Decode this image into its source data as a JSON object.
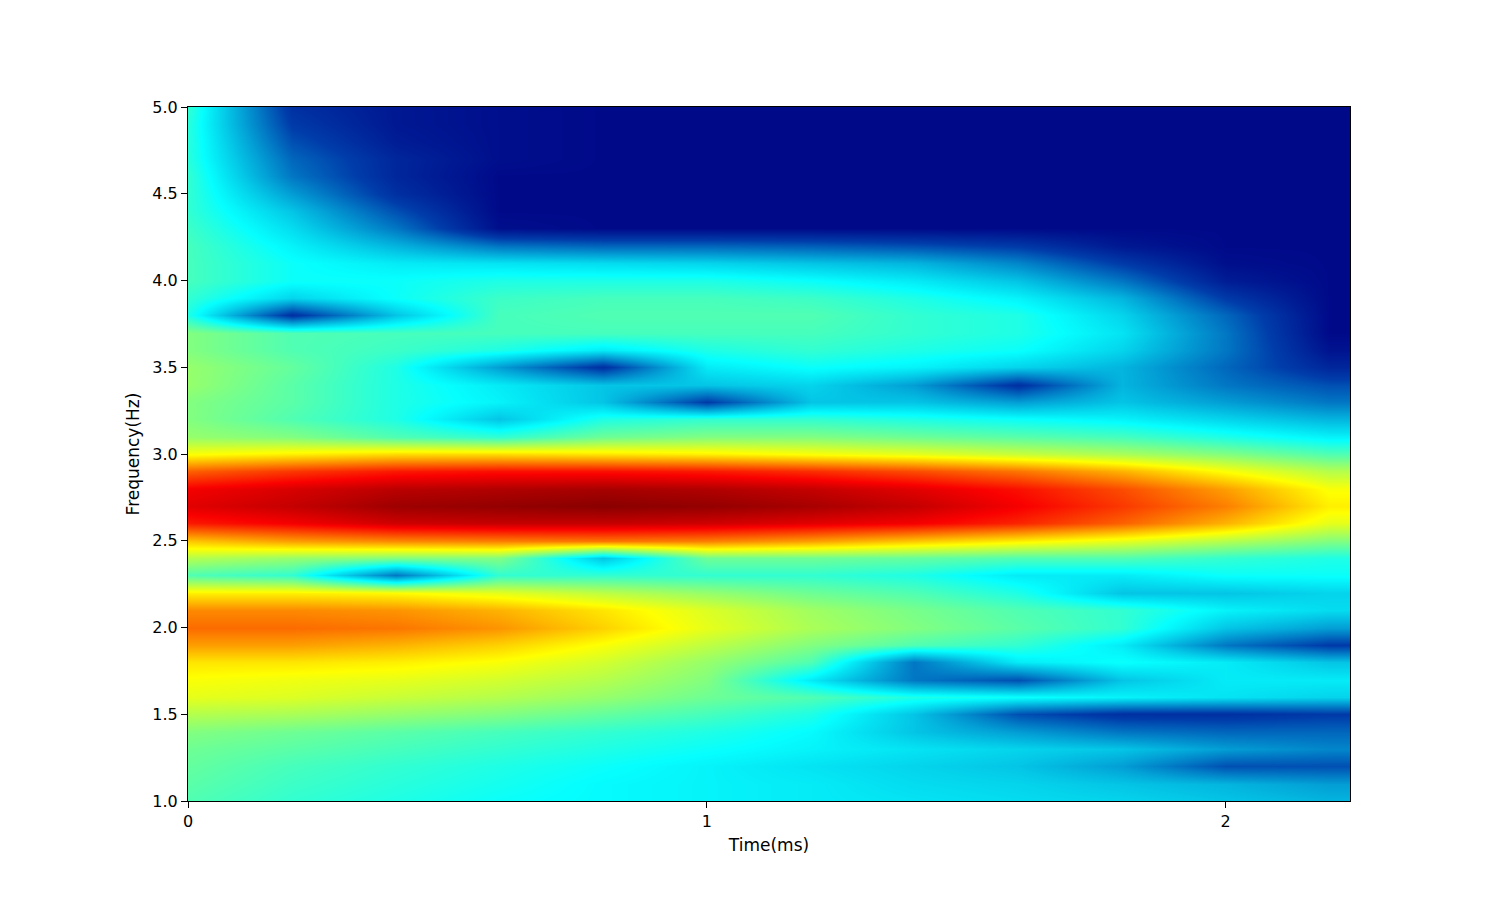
{
  "chart_data": {
    "type": "heatmap",
    "xlabel": "Time(ms)",
    "ylabel": "Frequency(Hz)",
    "color": "Jet",
    "grid": false,
    "xlim": [
      0,
      2.24
    ],
    "ylim": [
      1.0,
      5.0
    ],
    "zlim": [
      0,
      1
    ],
    "xticks": [
      0,
      1,
      2
    ],
    "yticks": [
      {
        "value": 1.0,
        "label": "1.0"
      },
      {
        "value": 1.5,
        "label": "1.5"
      },
      {
        "value": 2.0,
        "label": "2.0"
      },
      {
        "value": 2.5,
        "label": "2.5"
      },
      {
        "value": 3.0,
        "label": "3.0"
      },
      {
        "value": 3.5,
        "label": "3.5"
      },
      {
        "value": 4.0,
        "label": "4.0"
      },
      {
        "value": 4.5,
        "label": "4.5"
      },
      {
        "value": 5.0,
        "label": "5.0"
      }
    ],
    "x": [
      0,
      0.2,
      0.4,
      0.6,
      0.8,
      1.0,
      1.2,
      1.4,
      1.6,
      1.8,
      2.0,
      2.2
    ],
    "y": [
      1.0,
      1.1,
      1.2,
      1.3,
      1.4,
      1.5,
      1.6,
      1.7,
      1.8,
      1.9,
      2.0,
      2.1,
      2.2,
      2.3,
      2.4,
      2.5,
      2.6,
      2.7,
      2.8,
      2.9,
      3.0,
      3.1,
      3.2,
      3.3,
      3.4,
      3.5,
      3.6,
      3.7,
      3.8,
      3.9,
      4.0,
      4.1,
      4.2,
      4.3,
      4.4,
      4.5,
      4.6,
      4.7,
      4.8,
      4.9,
      5.0
    ],
    "values": [
      [
        0.45,
        0.42,
        0.4,
        0.38,
        0.37,
        0.36,
        0.35,
        0.34,
        0.33,
        0.32,
        0.3,
        0.28
      ],
      [
        0.46,
        0.43,
        0.41,
        0.39,
        0.37,
        0.36,
        0.35,
        0.33,
        0.32,
        0.3,
        0.28,
        0.25
      ],
      [
        0.47,
        0.44,
        0.42,
        0.4,
        0.38,
        0.36,
        0.34,
        0.32,
        0.3,
        0.25,
        0.15,
        0.15
      ],
      [
        0.48,
        0.46,
        0.44,
        0.42,
        0.4,
        0.38,
        0.36,
        0.34,
        0.32,
        0.3,
        0.25,
        0.22
      ],
      [
        0.5,
        0.48,
        0.46,
        0.44,
        0.42,
        0.4,
        0.37,
        0.3,
        0.25,
        0.2,
        0.18,
        0.18
      ],
      [
        0.55,
        0.54,
        0.52,
        0.5,
        0.47,
        0.44,
        0.4,
        0.3,
        0.15,
        0.1,
        0.1,
        0.12
      ],
      [
        0.6,
        0.59,
        0.57,
        0.55,
        0.52,
        0.48,
        0.45,
        0.4,
        0.38,
        0.36,
        0.34,
        0.32
      ],
      [
        0.62,
        0.61,
        0.6,
        0.58,
        0.55,
        0.5,
        0.35,
        0.2,
        0.15,
        0.3,
        0.35,
        0.35
      ],
      [
        0.65,
        0.65,
        0.64,
        0.62,
        0.58,
        0.52,
        0.45,
        0.2,
        0.35,
        0.38,
        0.35,
        0.3
      ],
      [
        0.72,
        0.72,
        0.7,
        0.67,
        0.62,
        0.56,
        0.5,
        0.45,
        0.42,
        0.35,
        0.2,
        0.12
      ],
      [
        0.77,
        0.77,
        0.76,
        0.73,
        0.67,
        0.6,
        0.54,
        0.5,
        0.46,
        0.42,
        0.3,
        0.25
      ],
      [
        0.74,
        0.74,
        0.73,
        0.7,
        0.65,
        0.59,
        0.53,
        0.49,
        0.45,
        0.42,
        0.36,
        0.33
      ],
      [
        0.64,
        0.64,
        0.63,
        0.6,
        0.56,
        0.52,
        0.48,
        0.45,
        0.4,
        0.3,
        0.3,
        0.32
      ],
      [
        0.45,
        0.42,
        0.2,
        0.42,
        0.42,
        0.42,
        0.42,
        0.4,
        0.35,
        0.35,
        0.38,
        0.38
      ],
      [
        0.55,
        0.52,
        0.5,
        0.5,
        0.3,
        0.48,
        0.48,
        0.47,
        0.45,
        0.45,
        0.42,
        0.4
      ],
      [
        0.68,
        0.72,
        0.74,
        0.75,
        0.76,
        0.75,
        0.72,
        0.68,
        0.64,
        0.6,
        0.55,
        0.5
      ],
      [
        0.85,
        0.88,
        0.92,
        0.93,
        0.93,
        0.92,
        0.9,
        0.88,
        0.84,
        0.78,
        0.7,
        0.6
      ],
      [
        0.9,
        0.93,
        0.97,
        0.98,
        0.99,
        0.98,
        0.96,
        0.93,
        0.88,
        0.82,
        0.75,
        0.64
      ],
      [
        0.88,
        0.91,
        0.94,
        0.95,
        0.96,
        0.95,
        0.93,
        0.9,
        0.86,
        0.8,
        0.72,
        0.62
      ],
      [
        0.78,
        0.82,
        0.85,
        0.86,
        0.86,
        0.85,
        0.83,
        0.8,
        0.76,
        0.7,
        0.62,
        0.55
      ],
      [
        0.62,
        0.64,
        0.66,
        0.66,
        0.65,
        0.64,
        0.62,
        0.6,
        0.57,
        0.54,
        0.5,
        0.45
      ],
      [
        0.52,
        0.5,
        0.45,
        0.42,
        0.48,
        0.5,
        0.5,
        0.48,
        0.46,
        0.44,
        0.4,
        0.36
      ],
      [
        0.5,
        0.45,
        0.4,
        0.3,
        0.4,
        0.42,
        0.42,
        0.4,
        0.38,
        0.36,
        0.32,
        0.28
      ],
      [
        0.5,
        0.46,
        0.4,
        0.36,
        0.3,
        0.12,
        0.3,
        0.3,
        0.25,
        0.3,
        0.25,
        0.2
      ],
      [
        0.52,
        0.46,
        0.4,
        0.35,
        0.3,
        0.3,
        0.32,
        0.25,
        0.1,
        0.28,
        0.2,
        0.15
      ],
      [
        0.52,
        0.47,
        0.4,
        0.25,
        0.1,
        0.35,
        0.38,
        0.36,
        0.32,
        0.28,
        0.18,
        0.08
      ],
      [
        0.5,
        0.45,
        0.43,
        0.4,
        0.35,
        0.4,
        0.42,
        0.4,
        0.38,
        0.32,
        0.2,
        0.04
      ],
      [
        0.5,
        0.45,
        0.44,
        0.44,
        0.44,
        0.44,
        0.44,
        0.42,
        0.4,
        0.34,
        0.2,
        0.02
      ],
      [
        0.4,
        0.1,
        0.3,
        0.44,
        0.45,
        0.45,
        0.45,
        0.42,
        0.4,
        0.32,
        0.18,
        0.02
      ],
      [
        0.42,
        0.32,
        0.38,
        0.43,
        0.44,
        0.44,
        0.43,
        0.4,
        0.36,
        0.28,
        0.12,
        0.02
      ],
      [
        0.44,
        0.38,
        0.38,
        0.4,
        0.4,
        0.4,
        0.38,
        0.35,
        0.3,
        0.2,
        0.06,
        0.02
      ],
      [
        0.44,
        0.38,
        0.35,
        0.34,
        0.33,
        0.32,
        0.3,
        0.28,
        0.22,
        0.12,
        0.03,
        0.02
      ],
      [
        0.44,
        0.36,
        0.28,
        0.2,
        0.18,
        0.18,
        0.17,
        0.15,
        0.12,
        0.05,
        0.02,
        0.02
      ],
      [
        0.43,
        0.33,
        0.2,
        0.03,
        0.02,
        0.02,
        0.02,
        0.02,
        0.02,
        0.02,
        0.02,
        0.02
      ],
      [
        0.42,
        0.3,
        0.15,
        0.02,
        0.02,
        0.02,
        0.02,
        0.02,
        0.02,
        0.02,
        0.02,
        0.02
      ],
      [
        0.42,
        0.25,
        0.1,
        0.02,
        0.02,
        0.02,
        0.02,
        0.02,
        0.02,
        0.02,
        0.02,
        0.02
      ],
      [
        0.42,
        0.2,
        0.08,
        0.02,
        0.02,
        0.02,
        0.02,
        0.02,
        0.02,
        0.02,
        0.02,
        0.02
      ],
      [
        0.41,
        0.18,
        0.08,
        0.03,
        0.02,
        0.02,
        0.02,
        0.02,
        0.02,
        0.02,
        0.02,
        0.02
      ],
      [
        0.41,
        0.15,
        0.06,
        0.03,
        0.02,
        0.02,
        0.02,
        0.02,
        0.02,
        0.02,
        0.02,
        0.02
      ],
      [
        0.41,
        0.12,
        0.05,
        0.03,
        0.02,
        0.02,
        0.02,
        0.02,
        0.02,
        0.02,
        0.02,
        0.02
      ],
      [
        0.42,
        0.1,
        0.05,
        0.03,
        0.02,
        0.02,
        0.02,
        0.02,
        0.02,
        0.02,
        0.02,
        0.02
      ]
    ]
  }
}
